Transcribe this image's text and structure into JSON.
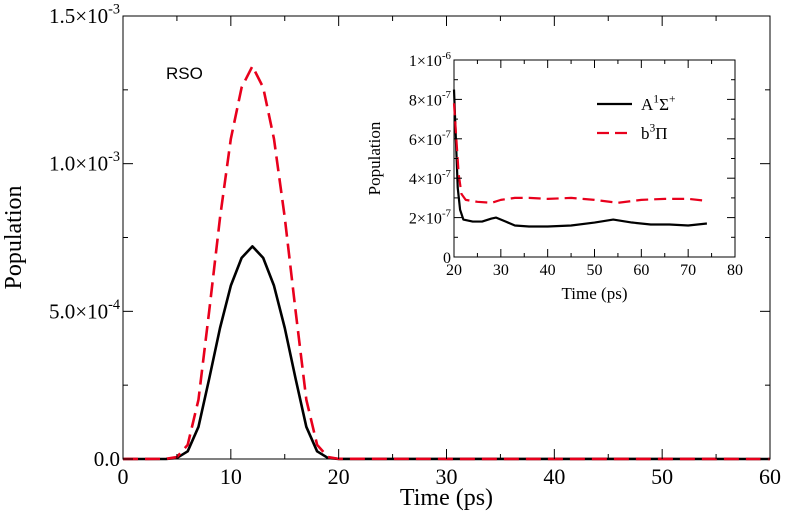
{
  "chart_data": [
    {
      "id": "main",
      "type": "line",
      "xlabel": "Time (ps)",
      "ylabel": "Population",
      "annotation": "RSO",
      "xlim": [
        0,
        60
      ],
      "ylim": [
        0,
        0.0015
      ],
      "x_ticks": [
        0,
        10,
        20,
        30,
        40,
        50,
        60
      ],
      "x_tick_labels": [
        "0",
        "10",
        "20",
        "30",
        "40",
        "50",
        "60"
      ],
      "y_ticks": [
        0,
        0.0005,
        0.001,
        0.0015
      ],
      "y_tick_labels": [
        {
          "mantissa": "0.0",
          "exponent": ""
        },
        {
          "mantissa": "5.0×10",
          "exponent": "-4"
        },
        {
          "mantissa": "1.0×10",
          "exponent": "-3"
        },
        {
          "mantissa": "1.5×10",
          "exponent": "-3"
        }
      ],
      "series": [
        {
          "name": "A1Σ+",
          "color": "#000000",
          "dash": "solid",
          "x": [
            0,
            4,
            5,
            6,
            7,
            8,
            9,
            10,
            11,
            12,
            13,
            14,
            15,
            16,
            17,
            18,
            19,
            20,
            60
          ],
          "values": [
            0,
            3e-07,
            3.6e-06,
            2.6e-05,
            0.000109,
            0.000273,
            0.000444,
            0.000587,
            0.000681,
            0.00072,
            0.000681,
            0.000587,
            0.000444,
            0.000273,
            0.000109,
            2.6e-05,
            3.6e-06,
            3e-07,
            0
          ]
        },
        {
          "name": "b3Π",
          "color": "#e8001c",
          "dash": "dashed",
          "x": [
            0,
            4,
            5,
            6,
            7,
            8,
            9,
            10,
            11,
            12,
            13,
            14,
            15,
            16,
            17,
            18,
            19,
            20,
            60
          ],
          "values": [
            0,
            5e-07,
            6.6e-06,
            4.8e-05,
            0.000201,
            0.000503,
            0.000818,
            0.001084,
            0.001258,
            0.00133,
            0.001258,
            0.001084,
            0.000818,
            0.000503,
            0.000201,
            4.8e-05,
            6.6e-06,
            5e-07,
            0
          ]
        }
      ]
    },
    {
      "id": "inset",
      "type": "line",
      "xlabel": "Time (ps)",
      "ylabel": "Population",
      "xlim": [
        20,
        80
      ],
      "ylim": [
        0,
        1e-06
      ],
      "x_ticks": [
        20,
        30,
        40,
        50,
        60,
        70,
        80
      ],
      "x_tick_labels": [
        "20",
        "30",
        "40",
        "50",
        "60",
        "70",
        "80"
      ],
      "y_ticks": [
        0,
        2e-07,
        4e-07,
        6e-07,
        8e-07,
        1e-06
      ],
      "y_tick_labels": [
        {
          "mantissa": "0",
          "exponent": ""
        },
        {
          "mantissa": "2×10",
          "exponent": "-7"
        },
        {
          "mantissa": "4×10",
          "exponent": "-7"
        },
        {
          "mantissa": "6×10",
          "exponent": "-7"
        },
        {
          "mantissa": "8×10",
          "exponent": "-7"
        },
        {
          "mantissa": "1×10",
          "exponent": "-6"
        }
      ],
      "legend": [
        {
          "base": "A",
          "sup1": "1",
          "mid": "Σ",
          "sup2": "+",
          "color": "#000000",
          "dash": "solid"
        },
        {
          "base": "b",
          "sup1": "3",
          "mid": "Π",
          "sup2": "",
          "color": "#e8001c",
          "dash": "dashed"
        }
      ],
      "series": [
        {
          "name": "A1Σ+",
          "color": "#000000",
          "dash": "solid",
          "x": [
            20,
            20.4,
            20.8,
            21.3,
            22,
            24,
            26,
            28,
            29,
            31,
            33,
            36,
            40,
            45,
            50,
            54,
            58,
            62,
            66,
            70,
            74
          ],
          "values": [
            8.5e-07,
            6e-07,
            3.5e-07,
            2.4e-07,
            1.9e-07,
            1.8e-07,
            1.8e-07,
            1.95e-07,
            2e-07,
            1.8e-07,
            1.6e-07,
            1.55e-07,
            1.55e-07,
            1.6e-07,
            1.75e-07,
            1.9e-07,
            1.75e-07,
            1.65e-07,
            1.65e-07,
            1.6e-07,
            1.7e-07
          ]
        },
        {
          "name": "b3Π",
          "color": "#e8001c",
          "dash": "dashed",
          "x": [
            20,
            20.5,
            21,
            21.6,
            22.5,
            25,
            28,
            30,
            33,
            36,
            40,
            45,
            50,
            55,
            60,
            65,
            70,
            74
          ],
          "values": [
            7.8e-07,
            6e-07,
            4.2e-07,
            3.2e-07,
            2.9e-07,
            2.8e-07,
            2.75e-07,
            2.9e-07,
            3e-07,
            3e-07,
            2.95e-07,
            3e-07,
            2.9e-07,
            2.75e-07,
            2.9e-07,
            2.95e-07,
            2.95e-07,
            2.85e-07
          ]
        }
      ]
    }
  ]
}
